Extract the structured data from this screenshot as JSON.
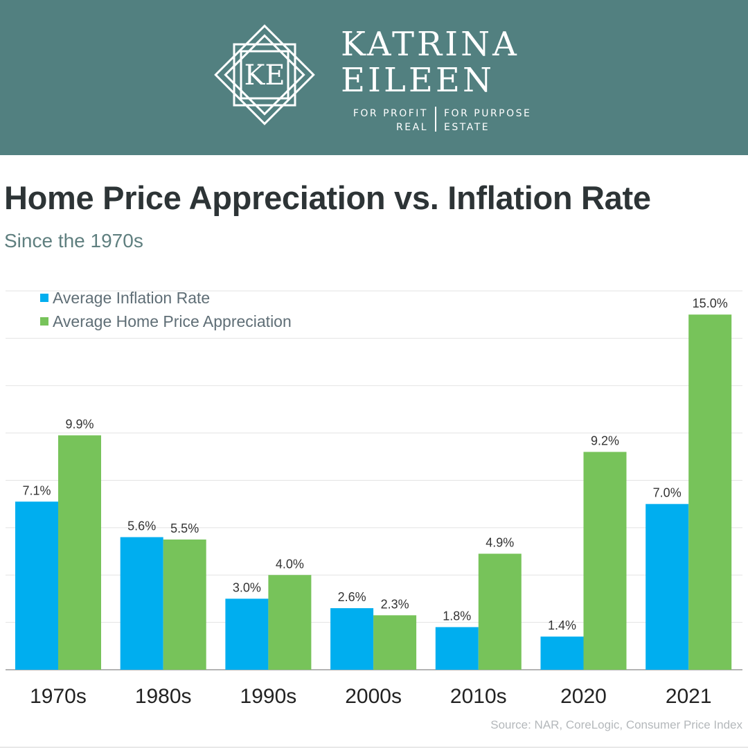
{
  "brand": {
    "logo_monogram": "KE",
    "name_line1": "KATRINA",
    "name_line2": "EILEEN",
    "tagline_left_1": "FOR PROFIT",
    "tagline_left_2": "REAL",
    "tagline_right_1": "FOR PURPOSE",
    "tagline_right_2": "ESTATE",
    "header_color": "#528080"
  },
  "source": "Source: NAR, CoreLogic, Consumer Price Index",
  "chart_data": {
    "type": "bar",
    "title": "Home Price Appreciation vs. Inflation Rate",
    "subtitle": "Since the 1970s",
    "categories": [
      "1970s",
      "1980s",
      "1990s",
      "2000s",
      "2010s",
      "2020",
      "2021"
    ],
    "series": [
      {
        "name": "Average Inflation Rate",
        "color": "#00aeef",
        "values": [
          7.1,
          5.6,
          3.0,
          2.6,
          1.8,
          1.4,
          7.0
        ],
        "labels": [
          "7.1%",
          "5.6%",
          "3.0%",
          "2.6%",
          "1.8%",
          "1.4%",
          "7.0%"
        ]
      },
      {
        "name": "Average Home Price Appreciation",
        "color": "#77c35a",
        "values": [
          9.9,
          5.5,
          4.0,
          2.3,
          4.9,
          9.2,
          15.0
        ],
        "labels": [
          "9.9%",
          "5.5%",
          "4.0%",
          "2.3%",
          "4.9%",
          "9.2%",
          "15.0%"
        ]
      }
    ],
    "ylim": [
      0,
      16
    ],
    "gridlines": true,
    "legend_position": "top-left",
    "xlabel": "",
    "ylabel": ""
  }
}
